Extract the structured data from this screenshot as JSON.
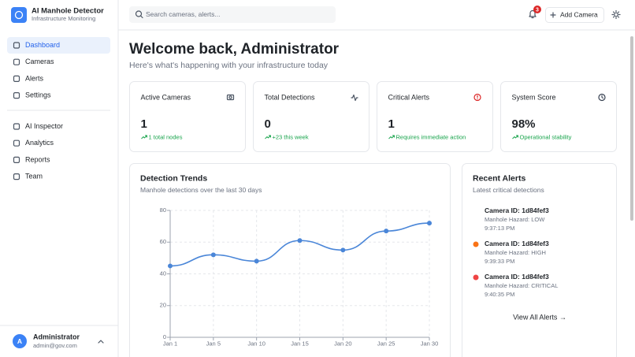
{
  "app": {
    "title": "AI Manhole Detector",
    "subtitle": "Infrastructure Monitoring"
  },
  "nav": {
    "main": [
      "Dashboard",
      "Cameras",
      "Alerts",
      "Settings"
    ],
    "tools": [
      "AI Inspector",
      "Analytics",
      "Reports",
      "Team"
    ]
  },
  "user": {
    "initial": "A",
    "name": "Administrator",
    "email": "admin@gov.com"
  },
  "header": {
    "search_placeholder": "Search cameras, alerts...",
    "notification_count": 3,
    "add_button": "Add Camera"
  },
  "welcome": {
    "title": "Welcome back, Administrator",
    "subtitle": "Here's what's happening with your infrastructure today"
  },
  "stats": [
    {
      "label": "Active Cameras",
      "value": 1,
      "note": "1 total nodes"
    },
    {
      "label": "Total Detections",
      "value": 0,
      "note": "+23 this week"
    },
    {
      "label": "Critical Alerts",
      "value": 1,
      "note": "Requires immediate action"
    },
    {
      "label": "System Score",
      "value": "98%",
      "note": "Operational stability"
    }
  ],
  "chart_data": {
    "type": "line",
    "title": "Detection Trends",
    "subtitle": "Manhole detections over the last 30 days",
    "categories": [
      "Jan 1",
      "Jan 5",
      "Jan 10",
      "Jan 15",
      "Jan 20",
      "Jan 25",
      "Jan 30"
    ],
    "values": [
      45,
      52,
      48,
      61,
      55,
      67,
      72
    ],
    "color": "#4a86d8",
    "ylim": [
      0,
      80
    ],
    "yticks": [
      0,
      20,
      40,
      60,
      80
    ],
    "grid": true
  },
  "alerts": {
    "title": "Recent Alerts",
    "subtitle": "Latest critical detections",
    "items": [
      {
        "camera": "Camera ID: 1d84fef3",
        "hazard": "Manhole Hazard: LOW",
        "time": "9:37:13 PM",
        "color": "#ffffff"
      },
      {
        "camera": "Camera ID: 1d84fef3",
        "hazard": "Manhole Hazard: HIGH",
        "time": "9:39:33 PM",
        "color": "#f97316"
      },
      {
        "camera": "Camera ID: 1d84fef3",
        "hazard": "Manhole Hazard: CRITICAL",
        "time": "9:40:35 PM",
        "color": "#ef4444"
      }
    ],
    "link": "View All Alerts →"
  }
}
